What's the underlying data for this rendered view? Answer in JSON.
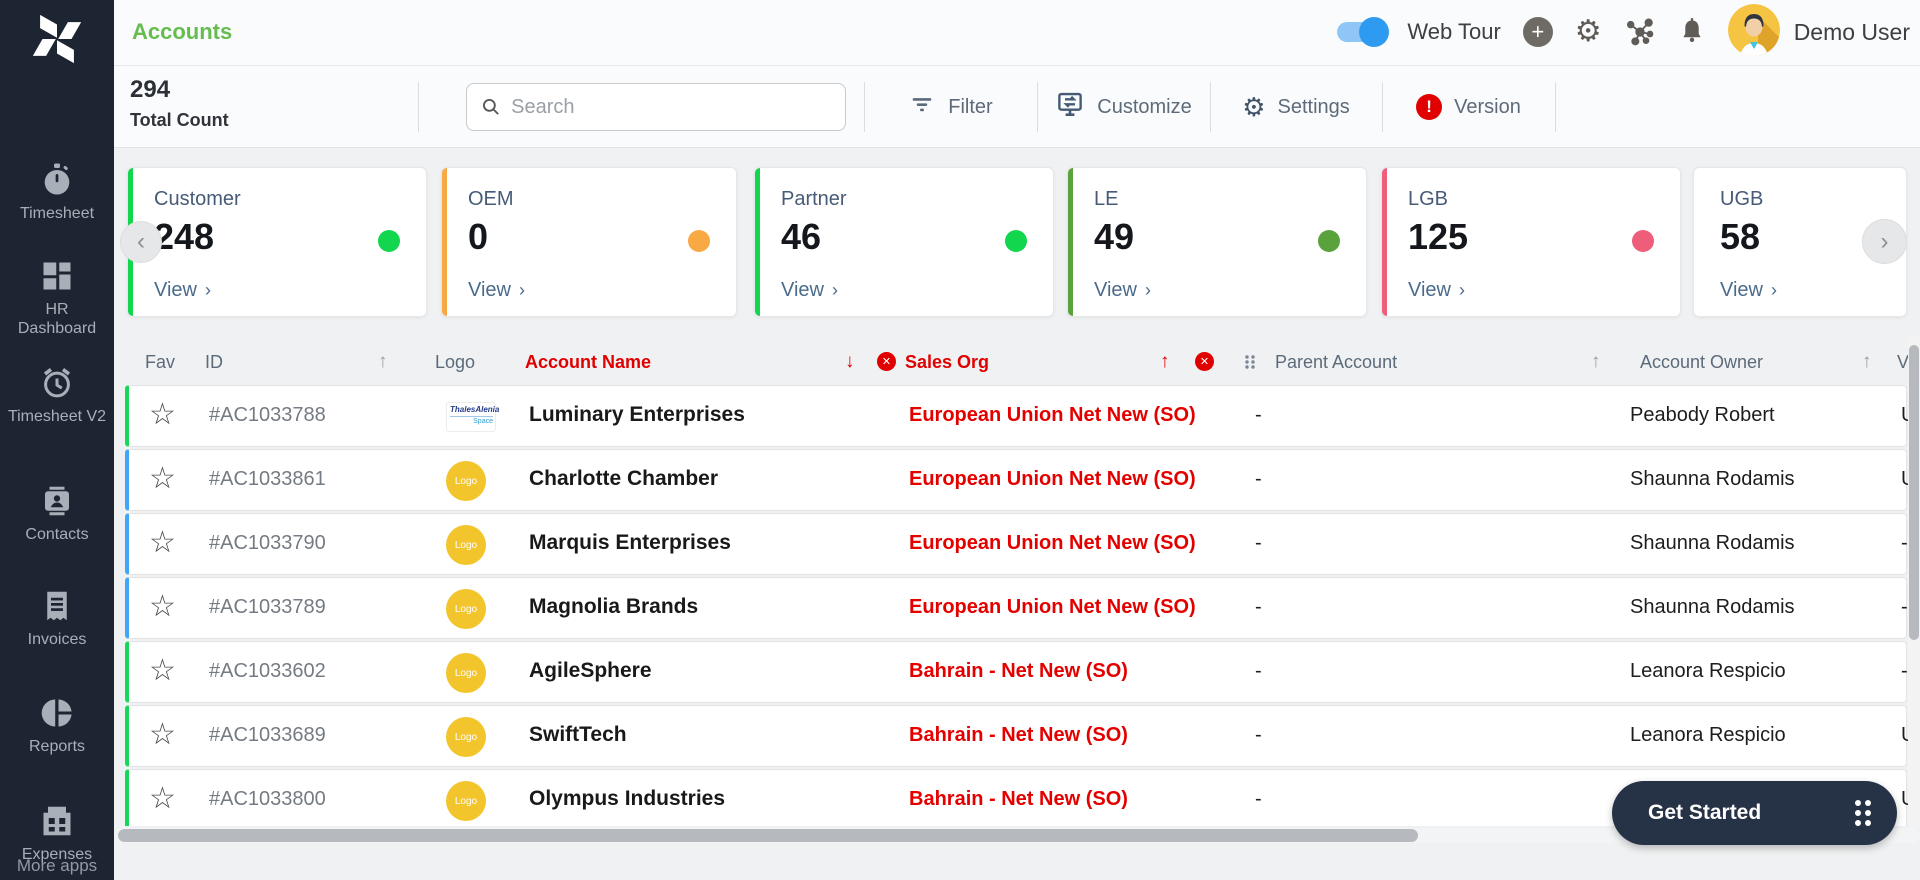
{
  "sidebar": {
    "items": [
      {
        "label": "Timesheet",
        "icon": "stopwatch-icon"
      },
      {
        "label": "HR Dashboard",
        "icon": "dashboard-icon"
      },
      {
        "label": "Timesheet V2",
        "icon": "alarm-clock-icon"
      },
      {
        "label": "Contacts",
        "icon": "contact-card-icon"
      },
      {
        "label": "Invoices",
        "icon": "invoice-icon"
      },
      {
        "label": "Reports",
        "icon": "pie-chart-icon"
      },
      {
        "label": "Expenses",
        "icon": "wallet-icon"
      }
    ],
    "more_apps_label": "More apps"
  },
  "header": {
    "title": "Accounts",
    "title_color": "#65bd4f",
    "web_tour_label": "Web Tour",
    "web_tour_on": true,
    "icons": [
      "plus-icon",
      "gear-icon",
      "apps-icon",
      "bell-icon"
    ],
    "user_name": "Demo User"
  },
  "toolbar": {
    "total_count_value": "294",
    "total_count_label": "Total Count",
    "search_placeholder": "Search",
    "actions": [
      {
        "label": "Filter",
        "icon": "filter-icon"
      },
      {
        "label": "Customize",
        "icon": "customize-icon"
      },
      {
        "label": "Settings",
        "icon": "gear-icon"
      },
      {
        "label": "Version",
        "icon": "version-alert-icon"
      }
    ]
  },
  "summary_cards": {
    "view_label": "View",
    "cards": [
      {
        "label": "Customer",
        "value": "248",
        "color": "#12d64e"
      },
      {
        "label": "OEM",
        "value": "0",
        "color": "#f8a944"
      },
      {
        "label": "Partner",
        "value": "46",
        "color": "#12d64e"
      },
      {
        "label": "LE",
        "value": "49",
        "color": "#59a23c"
      },
      {
        "label": "LGB",
        "value": "125",
        "color": "#ee5e7b"
      },
      {
        "label": "UGB",
        "value": "58",
        "color": ""
      }
    ]
  },
  "table": {
    "columns": [
      "Fav",
      "ID",
      "Logo",
      "Account Name",
      "Sales Org",
      "Parent Account",
      "Account Owner",
      "V"
    ],
    "sorted": {
      "account_name": "desc",
      "sales_org": "asc"
    },
    "logo_placeholder": "Logo",
    "thales_logo_text": [
      "ThalesAlenia",
      "Space"
    ],
    "rows": [
      {
        "id": "#AC1033788",
        "logo": "thales",
        "name": "Luminary Enterprises",
        "sales_org": "European Union Net New (SO)",
        "parent": "-",
        "owner": "Peabody Robert",
        "vertical": "U",
        "accent": "#15d75a"
      },
      {
        "id": "#AC1033861",
        "logo": "generic",
        "name": "Charlotte Chamber",
        "sales_org": "European Union Net New (SO)",
        "parent": "-",
        "owner": "Shaunna Rodamis",
        "vertical": "U",
        "accent": "#42a5f5"
      },
      {
        "id": "#AC1033790",
        "logo": "generic",
        "name": "Marquis Enterprises",
        "sales_org": "European Union Net New (SO)",
        "parent": "-",
        "owner": "Shaunna Rodamis",
        "vertical": "-",
        "accent": "#42a5f5"
      },
      {
        "id": "#AC1033789",
        "logo": "generic",
        "name": "Magnolia Brands",
        "sales_org": "European Union Net New (SO)",
        "parent": "-",
        "owner": "Shaunna Rodamis",
        "vertical": "-",
        "accent": "#42a5f5"
      },
      {
        "id": "#AC1033602",
        "logo": "generic",
        "name": "AgileSphere",
        "sales_org": "Bahrain - Net New (SO)",
        "parent": "-",
        "owner": "Leanora Respicio",
        "vertical": "-",
        "accent": "#15d75a"
      },
      {
        "id": "#AC1033689",
        "logo": "generic",
        "name": "SwiftTech",
        "sales_org": "Bahrain - Net New (SO)",
        "parent": "-",
        "owner": "Leanora Respicio",
        "vertical": "U",
        "accent": "#15d75a"
      },
      {
        "id": "#AC1033800",
        "logo": "generic",
        "name": "Olympus Industries",
        "sales_org": "Bahrain - Net New (SO)",
        "parent": "-",
        "owner": "",
        "vertical": "U",
        "accent": "#15d75a"
      }
    ]
  },
  "footer": {
    "get_started_label": "Get Started"
  },
  "colors": {
    "red_accent": "#e00000",
    "row_green": "#15d75a",
    "row_blue": "#42a5f5",
    "sidebar_bg": "#1d2533"
  }
}
